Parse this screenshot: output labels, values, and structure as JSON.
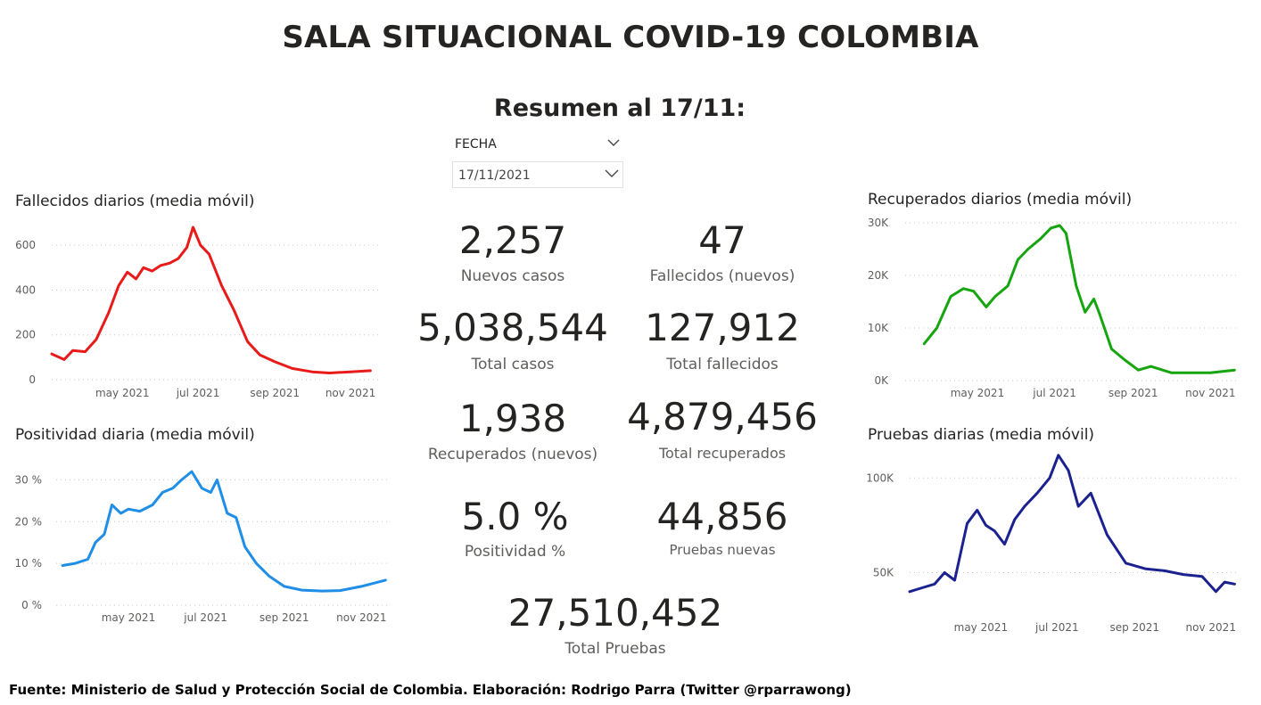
{
  "header": {
    "title": "SALA SITUACIONAL COVID-19 COLOMBIA",
    "subtitle": "Resumen al 17/11:"
  },
  "slicer": {
    "label": "FECHA",
    "value": "17/11/2021",
    "chevron": "chevron-down-icon"
  },
  "kpis": {
    "nuevos_casos": {
      "value": "2,257",
      "label": "Nuevos casos"
    },
    "fallecidos_nuevos": {
      "value": "47",
      "label": "Fallecidos (nuevos)"
    },
    "total_casos": {
      "value": "5,038,544",
      "label": "Total casos"
    },
    "total_fallecidos": {
      "value": "127,912",
      "label": "Total fallecidos"
    },
    "recuperados_nuevos": {
      "value": "1,938",
      "label": "Recuperados (nuevos)"
    },
    "total_recuperados": {
      "value": "4,879,456",
      "label": "Total recuperados"
    },
    "positividad": {
      "value": "5.0 %",
      "label": "Positividad %"
    },
    "pruebas_nuevas": {
      "value": "44,856",
      "label": "Pruebas nuevas"
    },
    "total_pruebas": {
      "value": "27,510,452",
      "label": "Total Pruebas"
    }
  },
  "footer": "Fuente: Ministerio de Salud y Protección Social de Colombia. Elaboración: Rodrigo Parra (Twitter @rparrawong)",
  "chart_data": [
    {
      "id": "fallecidos",
      "type": "line",
      "title": "Fallecidos diarios (media móvil)",
      "color": "#e81b1b",
      "xlim": [
        "2021-03-05",
        "2021-11-24"
      ],
      "ylim": [
        0,
        700
      ],
      "yticks": [
        0,
        200,
        400,
        600
      ],
      "ytick_labels": [
        "0",
        "200",
        "400",
        "600"
      ],
      "xticks": [
        "2021-05-01",
        "2021-07-01",
        "2021-09-01",
        "2021-11-01"
      ],
      "xtick_labels": [
        "may 2021",
        "jul 2021",
        "sep 2021",
        "nov 2021"
      ],
      "grid": true,
      "x": [
        "2021-03-05",
        "2021-03-15",
        "2021-03-22",
        "2021-04-01",
        "2021-04-10",
        "2021-04-20",
        "2021-04-28",
        "2021-05-05",
        "2021-05-12",
        "2021-05-18",
        "2021-05-25",
        "2021-06-01",
        "2021-06-08",
        "2021-06-15",
        "2021-06-22",
        "2021-06-27",
        "2021-07-03",
        "2021-07-10",
        "2021-07-20",
        "2021-07-30",
        "2021-08-10",
        "2021-08-20",
        "2021-09-01",
        "2021-09-15",
        "2021-10-01",
        "2021-10-15",
        "2021-11-01",
        "2021-11-17"
      ],
      "y": [
        115,
        90,
        130,
        125,
        180,
        300,
        420,
        480,
        450,
        500,
        485,
        510,
        520,
        540,
        590,
        680,
        600,
        560,
        420,
        310,
        170,
        110,
        80,
        50,
        35,
        30,
        35,
        40
      ]
    },
    {
      "id": "positividad",
      "type": "line",
      "title": "Positividad diaria (media móvil)",
      "color": "#1e8ee6",
      "xlim": [
        "2021-03-05",
        "2021-11-24"
      ],
      "ylim": [
        0,
        35
      ],
      "yticks": [
        0,
        10,
        20,
        30
      ],
      "ytick_labels": [
        "0 %",
        "10 %",
        "20 %",
        "30 %"
      ],
      "xticks": [
        "2021-05-01",
        "2021-07-01",
        "2021-09-01",
        "2021-11-01"
      ],
      "xtick_labels": [
        "may 2021",
        "jul 2021",
        "sep 2021",
        "nov 2021"
      ],
      "grid": true,
      "x": [
        "2021-03-10",
        "2021-03-20",
        "2021-03-30",
        "2021-04-05",
        "2021-04-12",
        "2021-04-18",
        "2021-04-25",
        "2021-05-01",
        "2021-05-10",
        "2021-05-20",
        "2021-05-28",
        "2021-06-05",
        "2021-06-12",
        "2021-06-20",
        "2021-06-28",
        "2021-07-05",
        "2021-07-10",
        "2021-07-18",
        "2021-07-25",
        "2021-08-01",
        "2021-08-10",
        "2021-08-20",
        "2021-09-01",
        "2021-09-15",
        "2021-10-01",
        "2021-10-15",
        "2021-11-01",
        "2021-11-20"
      ],
      "y": [
        9.5,
        10,
        11,
        15,
        17,
        24,
        22,
        23,
        22.5,
        24,
        27,
        28,
        30,
        32,
        28,
        27,
        30,
        22,
        21,
        14,
        10,
        7,
        4.5,
        3.6,
        3.4,
        3.5,
        4.5,
        6
      ]
    },
    {
      "id": "recuperados",
      "type": "line",
      "title": "Recuperados diarios (media móvil)",
      "color": "#16a50e",
      "xlim": [
        "2021-03-05",
        "2021-11-24"
      ],
      "ylim": [
        0,
        30000
      ],
      "yticks": [
        0,
        10000,
        20000,
        30000
      ],
      "ytick_labels": [
        "0K",
        "10K",
        "20K",
        "30K"
      ],
      "xticks": [
        "2021-05-01",
        "2021-07-01",
        "2021-09-01",
        "2021-11-01"
      ],
      "xtick_labels": [
        "may 2021",
        "jul 2021",
        "sep 2021",
        "nov 2021"
      ],
      "grid": true,
      "x": [
        "2021-03-20",
        "2021-03-30",
        "2021-04-10",
        "2021-04-20",
        "2021-04-28",
        "2021-05-08",
        "2021-05-15",
        "2021-05-25",
        "2021-06-02",
        "2021-06-10",
        "2021-06-20",
        "2021-06-28",
        "2021-07-05",
        "2021-07-10",
        "2021-07-18",
        "2021-07-25",
        "2021-08-01",
        "2021-08-05",
        "2021-08-15",
        "2021-08-25",
        "2021-09-05",
        "2021-09-15",
        "2021-10-01",
        "2021-10-15",
        "2021-11-01",
        "2021-11-20"
      ],
      "y": [
        7000,
        10000,
        16000,
        17500,
        17000,
        14000,
        16000,
        18000,
        23000,
        25000,
        27000,
        29000,
        29500,
        28000,
        18000,
        13000,
        15500,
        13000,
        6000,
        4000,
        2000,
        2700,
        1500,
        1500,
        1500,
        2000
      ]
    },
    {
      "id": "pruebas",
      "type": "line",
      "title": "Pruebas diarias (media móvil)",
      "color": "#1b228f",
      "xlim": [
        "2021-03-05",
        "2021-11-24"
      ],
      "ylim": [
        30000,
        110000
      ],
      "yticks": [
        50000,
        100000
      ],
      "ytick_labels": [
        "50K",
        "100K"
      ],
      "xticks": [
        "2021-05-01",
        "2021-07-01",
        "2021-09-01",
        "2021-11-01"
      ],
      "xtick_labels": [
        "may 2021",
        "jul 2021",
        "sep 2021",
        "nov 2021"
      ],
      "grid": true,
      "x": [
        "2021-03-05",
        "2021-03-15",
        "2021-03-25",
        "2021-04-02",
        "2021-04-10",
        "2021-04-20",
        "2021-04-28",
        "2021-05-05",
        "2021-05-12",
        "2021-05-20",
        "2021-05-28",
        "2021-06-05",
        "2021-06-15",
        "2021-06-25",
        "2021-07-02",
        "2021-07-10",
        "2021-07-18",
        "2021-07-28",
        "2021-08-10",
        "2021-08-25",
        "2021-09-10",
        "2021-09-25",
        "2021-10-10",
        "2021-10-25",
        "2021-11-05",
        "2021-11-12",
        "2021-11-20"
      ],
      "y": [
        40000,
        42000,
        44000,
        50000,
        46000,
        76000,
        83000,
        75000,
        72000,
        65000,
        78000,
        85000,
        92000,
        100000,
        112000,
        104000,
        85000,
        92000,
        70000,
        55000,
        52000,
        51000,
        49000,
        48000,
        40000,
        45000,
        44000
      ]
    }
  ]
}
